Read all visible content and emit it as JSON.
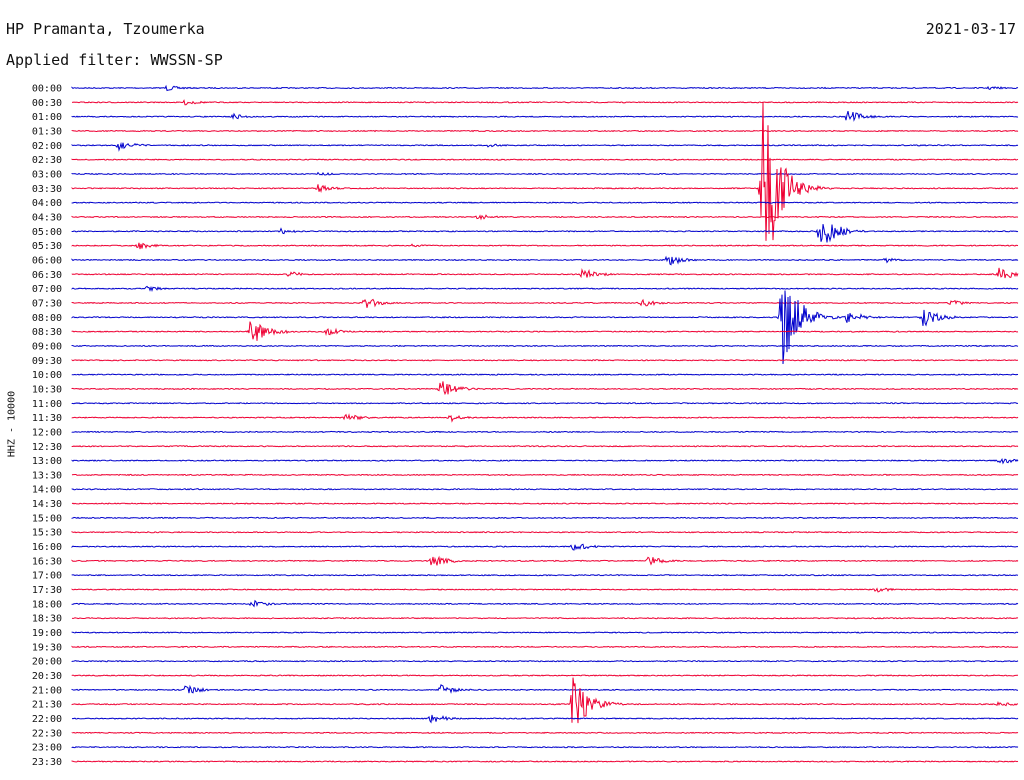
{
  "header": {
    "title": "HP Pramanta, Tzoumerka",
    "date": "2021-03-17",
    "filter": "Applied filter: WWSSN-SP"
  },
  "axis": {
    "ylabel": "HHZ - 10000"
  },
  "colors": {
    "even": "#0000cc",
    "odd": "#ee0033"
  },
  "chart_data": {
    "type": "line",
    "title": "HP Pramanta, Tzoumerka",
    "subtitle": "Applied filter: WWSSN-SP",
    "ylabel": "HHZ - 10000",
    "rows": [
      "00:00",
      "00:30",
      "01:00",
      "01:30",
      "02:00",
      "02:30",
      "03:00",
      "03:30",
      "04:00",
      "04:30",
      "05:00",
      "05:30",
      "06:00",
      "06:30",
      "07:00",
      "07:30",
      "08:00",
      "08:30",
      "09:00",
      "09:30",
      "10:00",
      "10:30",
      "11:00",
      "11:30",
      "12:00",
      "12:30",
      "13:00",
      "13:30",
      "14:00",
      "14:30",
      "15:00",
      "15:30",
      "16:00",
      "16:30",
      "17:00",
      "17:30",
      "18:00",
      "18:30",
      "19:00",
      "19:30",
      "20:00",
      "20:30",
      "21:00",
      "21:30",
      "22:00",
      "22:30",
      "23:00",
      "23:30"
    ],
    "events": [
      {
        "row": 0,
        "t": 0.1,
        "amp": 3
      },
      {
        "row": 0,
        "t": 0.97,
        "amp": 2
      },
      {
        "row": 1,
        "t": 0.12,
        "amp": 3
      },
      {
        "row": 2,
        "t": 0.17,
        "amp": 3
      },
      {
        "row": 2,
        "t": 0.82,
        "amp": 7
      },
      {
        "row": 4,
        "t": 0.05,
        "amp": 5
      },
      {
        "row": 4,
        "t": 0.44,
        "amp": 2
      },
      {
        "row": 6,
        "t": 0.26,
        "amp": 2
      },
      {
        "row": 7,
        "t": 0.26,
        "amp": 4
      },
      {
        "row": 7,
        "t": 0.73,
        "amp": 110
      },
      {
        "row": 9,
        "t": 0.43,
        "amp": 3
      },
      {
        "row": 10,
        "t": 0.22,
        "amp": 3
      },
      {
        "row": 10,
        "t": 0.79,
        "amp": 22
      },
      {
        "row": 11,
        "t": 0.07,
        "amp": 4
      },
      {
        "row": 11,
        "t": 0.36,
        "amp": 2
      },
      {
        "row": 12,
        "t": 0.63,
        "amp": 6
      },
      {
        "row": 12,
        "t": 0.86,
        "amp": 3
      },
      {
        "row": 13,
        "t": 0.23,
        "amp": 3
      },
      {
        "row": 13,
        "t": 0.54,
        "amp": 6
      },
      {
        "row": 13,
        "t": 0.98,
        "amp": 7
      },
      {
        "row": 14,
        "t": 0.08,
        "amp": 3
      },
      {
        "row": 15,
        "t": 0.31,
        "amp": 6
      },
      {
        "row": 15,
        "t": 0.6,
        "amp": 5
      },
      {
        "row": 15,
        "t": 0.93,
        "amp": 3
      },
      {
        "row": 16,
        "t": 0.75,
        "amp": 65
      },
      {
        "row": 16,
        "t": 0.82,
        "amp": 7
      },
      {
        "row": 16,
        "t": 0.9,
        "amp": 10
      },
      {
        "row": 17,
        "t": 0.19,
        "amp": 18
      },
      {
        "row": 17,
        "t": 0.27,
        "amp": 4
      },
      {
        "row": 21,
        "t": 0.39,
        "amp": 9
      },
      {
        "row": 23,
        "t": 0.29,
        "amp": 4
      },
      {
        "row": 23,
        "t": 0.4,
        "amp": 4
      },
      {
        "row": 26,
        "t": 0.98,
        "amp": 4
      },
      {
        "row": 32,
        "t": 0.53,
        "amp": 5
      },
      {
        "row": 33,
        "t": 0.38,
        "amp": 7
      },
      {
        "row": 33,
        "t": 0.61,
        "amp": 5
      },
      {
        "row": 35,
        "t": 0.85,
        "amp": 3
      },
      {
        "row": 36,
        "t": 0.19,
        "amp": 4
      },
      {
        "row": 42,
        "t": 0.12,
        "amp": 5
      },
      {
        "row": 42,
        "t": 0.39,
        "amp": 5
      },
      {
        "row": 43,
        "t": 0.53,
        "amp": 32
      },
      {
        "row": 43,
        "t": 0.98,
        "amp": 3
      },
      {
        "row": 44,
        "t": 0.38,
        "amp": 5
      }
    ]
  }
}
